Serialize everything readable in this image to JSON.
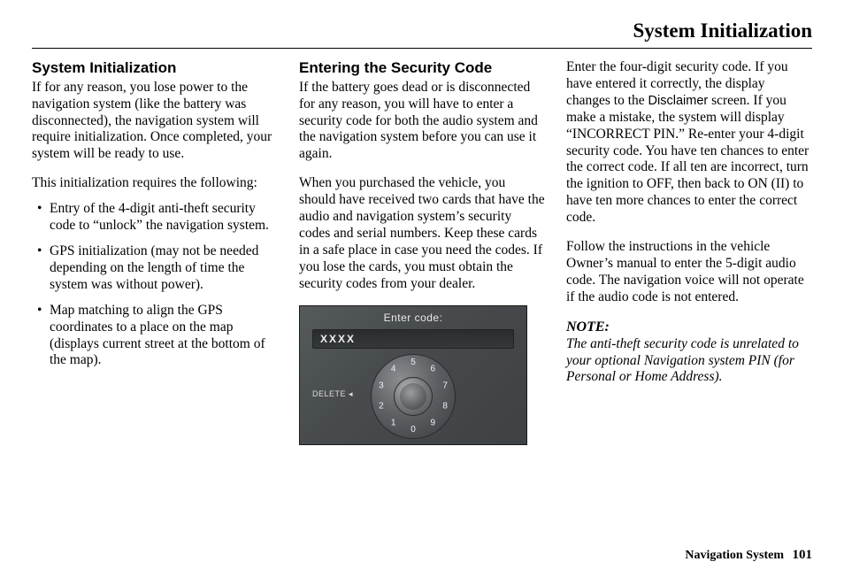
{
  "running_header": "System Initialization",
  "footer": {
    "label": "Navigation System",
    "page": "101"
  },
  "col1": {
    "heading": "System Initialization",
    "p1": "If for any reason, you lose power to the navigation system (like the battery was disconnected), the navigation system will require initialization. Once completed, your system will be ready to use.",
    "p2": "This initialization requires the following:",
    "bullets": [
      "Entry of the 4-digit anti-theft security code to “unlock” the navigation system.",
      "GPS initialization (may not be needed depending on the length of time the system was without power).",
      "Map matching to align the GPS coordinates to a place on the map (displays current street at the bottom of the map)."
    ]
  },
  "col2": {
    "heading": "Entering the Security Code",
    "p1": "If the battery goes dead or is disconnected for any reason, you will have to enter a security code for both the audio system and the navigation system before you can use it again.",
    "p2": "When you purchased the vehicle, you should have received two cards that have the audio and navigation system’s security codes and serial numbers. Keep these cards in a safe place in case you need the codes. If you lose the cards, you must obtain the security codes from your dealer.",
    "screen": {
      "title": "Enter code:",
      "field_value": "XXXX",
      "delete_label": "DELETE ◂",
      "digits": [
        "0",
        "1",
        "2",
        "3",
        "4",
        "5",
        "6",
        "7",
        "8",
        "9"
      ],
      "colors": {
        "bg_from": "#555a5c",
        "bg_to": "#3d4143",
        "text": "#e8e8e8",
        "field_bg": "#2f3234",
        "ring_light": "#8a8e90",
        "ring_dark": "#3a3d3f"
      }
    }
  },
  "col3": {
    "p1a": "Enter the four-digit security code. If you have entered it correctly, the display changes to the ",
    "disclaimer_word": "Disclaimer",
    "p1b": " screen. If you make a mistake, the system will display “INCORRECT PIN.” Re-enter your 4-digit security code. You have ten chances to enter the correct code. If all ten are incorrect, turn the ignition to OFF, then back to ON (II) to have ten more chances to enter the correct code.",
    "p2": "Follow the instructions in the vehicle Owner’s manual to enter the 5-digit audio code. The navigation voice will not operate if the audio code is not entered.",
    "note_label": "NOTE:",
    "note_body": "The anti-theft security code is unrelated to your optional Navigation system PIN (for Personal or Home Address)."
  }
}
